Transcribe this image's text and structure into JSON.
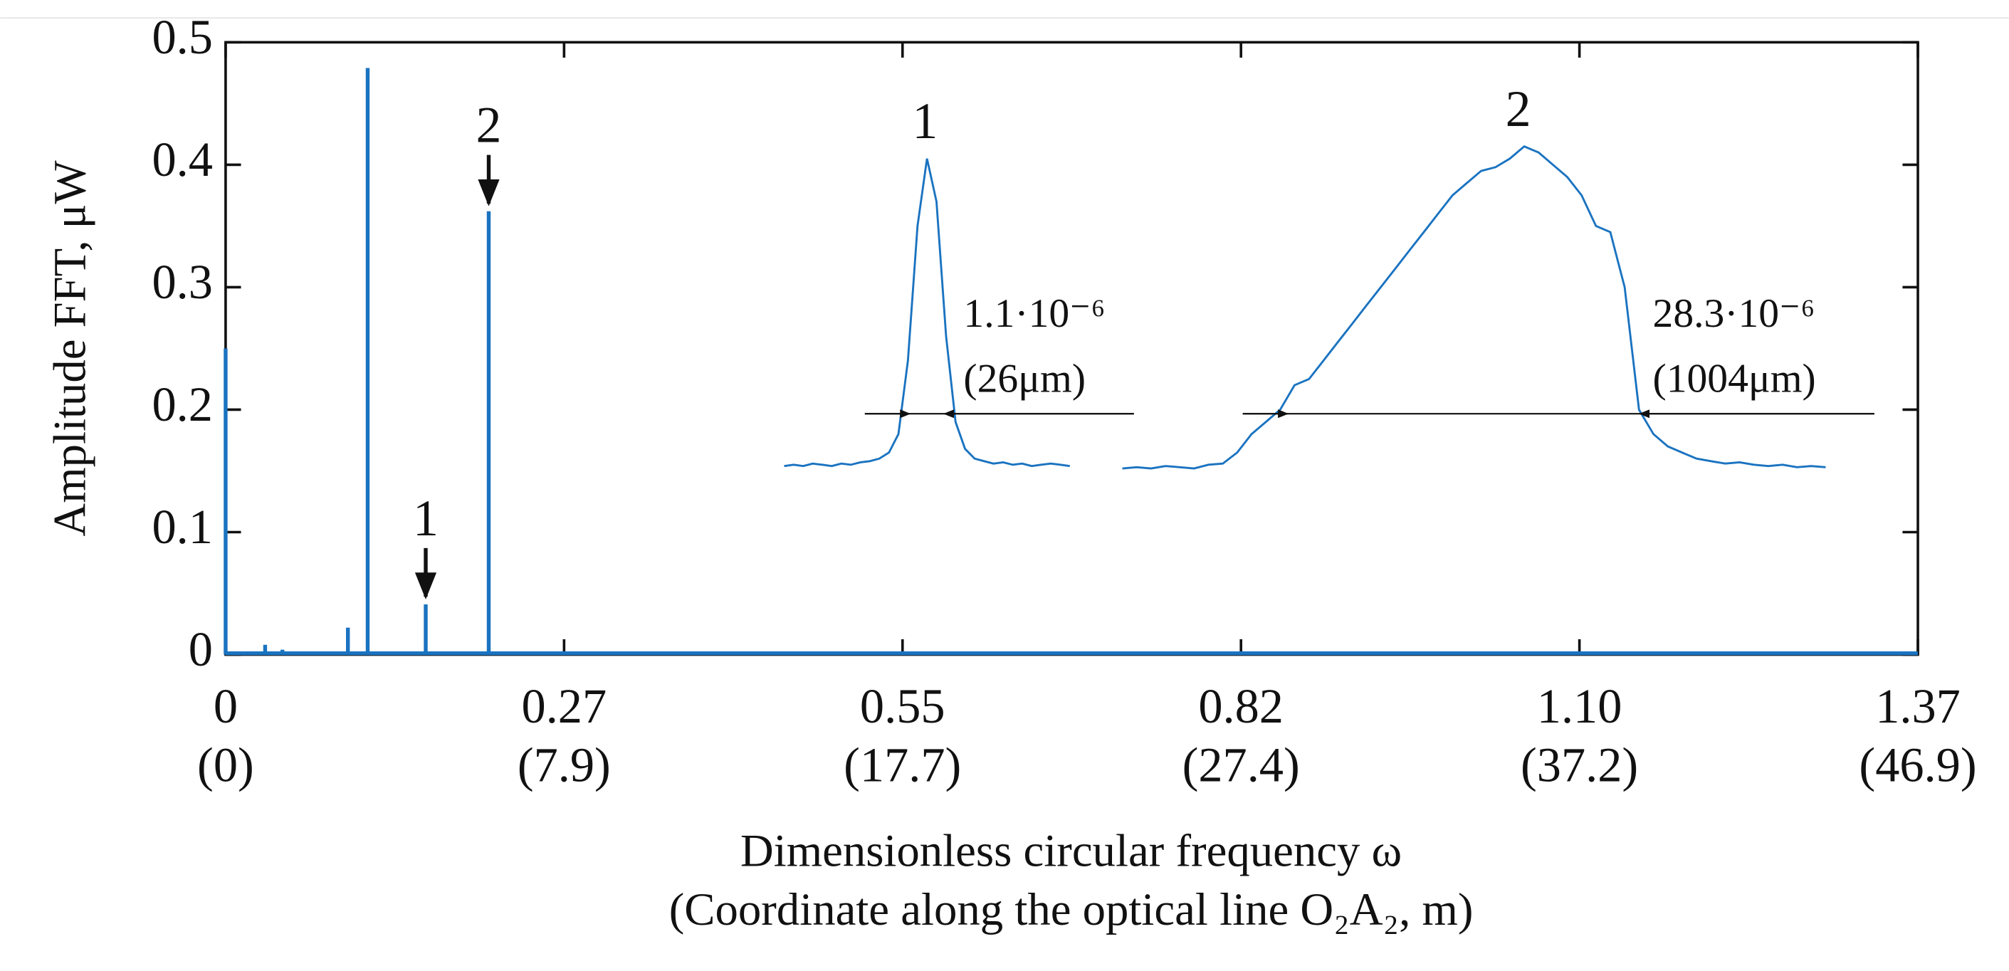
{
  "chart_data": {
    "type": "stem",
    "ylabel": "Amplitude FFT, μW",
    "xlabel": [
      "Dimensionless circular frequency ω",
      "(Coordinate along the optical line O₂A₂, m)"
    ],
    "color": "#1a73c0",
    "x": [
      0,
      0.032,
      0.046,
      0.099,
      0.115,
      0.162,
      0.213
    ],
    "values": [
      0.25,
      0.008,
      0.004,
      0.022,
      0.479,
      0.041,
      0.362
    ],
    "xlim": [
      0,
      1.37
    ],
    "ylim": [
      0,
      0.5
    ],
    "xticks": [
      {
        "value": 0,
        "label": "0",
        "label2": "(0)"
      },
      {
        "value": 0.274,
        "label": "0.27",
        "label2": "(7.9)"
      },
      {
        "value": 0.548,
        "label": "0.55",
        "label2": "(17.7)"
      },
      {
        "value": 0.822,
        "label": "0.82",
        "label2": "(27.4)"
      },
      {
        "value": 1.096,
        "label": "1.10",
        "label2": "(37.2)"
      },
      {
        "value": 1.37,
        "label": "1.37",
        "label2": "(46.9)"
      }
    ],
    "yticks": [
      0,
      0.1,
      0.2,
      0.3,
      0.4,
      0.5
    ],
    "annotations": [
      "1",
      "2"
    ],
    "insets": [
      {
        "title": "1",
        "width_label": "1.1·10⁻⁶",
        "size_label": "(26μm)",
        "values": [
          0.154,
          0.155,
          0.154,
          0.156,
          0.155,
          0.154,
          0.156,
          0.155,
          0.157,
          0.158,
          0.16,
          0.165,
          0.18,
          0.24,
          0.35,
          0.405,
          0.37,
          0.26,
          0.19,
          0.168,
          0.16,
          0.158,
          0.156,
          0.157,
          0.155,
          0.156,
          0.154,
          0.155,
          0.156,
          0.155,
          0.154
        ]
      },
      {
        "title": "2",
        "width_label": "28.3·10⁻⁶",
        "size_label": "(1004μm)",
        "values": [
          0.152,
          0.153,
          0.152,
          0.154,
          0.153,
          0.152,
          0.155,
          0.156,
          0.165,
          0.18,
          0.19,
          0.2,
          0.22,
          0.225,
          0.24,
          0.255,
          0.27,
          0.285,
          0.3,
          0.315,
          0.33,
          0.345,
          0.36,
          0.375,
          0.385,
          0.395,
          0.398,
          0.405,
          0.415,
          0.41,
          0.4,
          0.39,
          0.375,
          0.35,
          0.345,
          0.3,
          0.2,
          0.18,
          0.17,
          0.165,
          0.16,
          0.158,
          0.156,
          0.157,
          0.155,
          0.154,
          0.155,
          0.153,
          0.154,
          0.153
        ]
      }
    ]
  }
}
